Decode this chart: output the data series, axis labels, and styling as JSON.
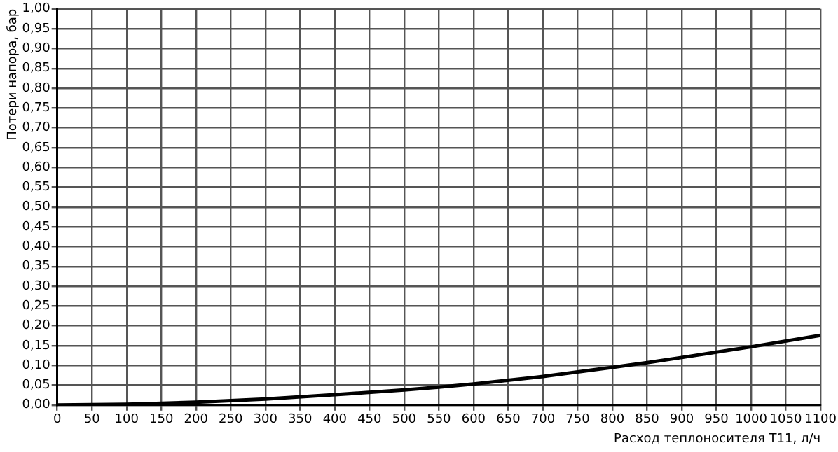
{
  "chart_data": {
    "type": "line",
    "xlabel": "Расход теплоносителя Т11, л/ч",
    "ylabel": "Потери напора, бар",
    "x": [
      0,
      100,
      200,
      300,
      400,
      500,
      550,
      600,
      700,
      800,
      850,
      900,
      1000,
      1100
    ],
    "series": [
      {
        "color": "#000000",
        "values": [
          0,
          0.002,
          0.007,
          0.015,
          0.026,
          0.038,
          0.045,
          0.053,
          0.072,
          0.095,
          0.107,
          0.12,
          0.147,
          0.176
        ]
      }
    ],
    "xlim": [
      0,
      1100
    ],
    "xticks": [
      0,
      50,
      100,
      150,
      200,
      250,
      300,
      350,
      400,
      450,
      500,
      550,
      600,
      650,
      700,
      750,
      800,
      850,
      900,
      950,
      1000,
      1050,
      1100
    ],
    "ylim": [
      0,
      1
    ],
    "yticks": [
      {
        "value": 0,
        "label": "0,00"
      },
      {
        "value": 0.05,
        "label": "0,05"
      },
      {
        "value": 0.1,
        "label": "0,10"
      },
      {
        "value": 0.15,
        "label": "0,15"
      },
      {
        "value": 0.2,
        "label": "0,20"
      },
      {
        "value": 0.25,
        "label": "0,25"
      },
      {
        "value": 0.3,
        "label": "0,30"
      },
      {
        "value": 0.35,
        "label": "0,35"
      },
      {
        "value": 0.4,
        "label": "0,40"
      },
      {
        "value": 0.45,
        "label": "0,45"
      },
      {
        "value": 0.5,
        "label": "0,50"
      },
      {
        "value": 0.55,
        "label": "0,55"
      },
      {
        "value": 0.6,
        "label": "0,60"
      },
      {
        "value": 0.65,
        "label": "0,65"
      },
      {
        "value": 0.7,
        "label": "0,70"
      },
      {
        "value": 0.75,
        "label": "0,75"
      },
      {
        "value": 0.8,
        "label": "0,80"
      },
      {
        "value": 0.85,
        "label": "0,85"
      },
      {
        "value": 0.9,
        "label": "0,90"
      },
      {
        "value": 0.95,
        "label": "0,95"
      },
      {
        "value": 1,
        "label": "1,00"
      }
    ],
    "grid": true,
    "marker": "none",
    "line_style": "solid",
    "legend": false
  }
}
